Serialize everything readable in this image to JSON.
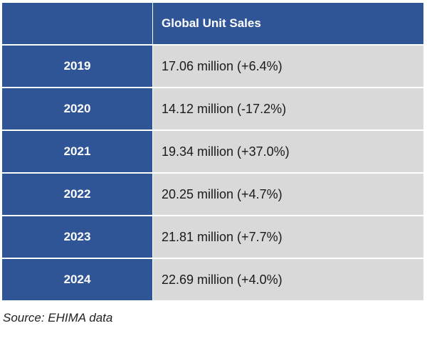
{
  "table": {
    "header": {
      "corner": "",
      "column_label": "Global Unit Sales"
    },
    "rows": [
      {
        "year": "2019",
        "value": "17.06 million (+6.4%)"
      },
      {
        "year": "2020",
        "value": "14.12 million (-17.2%)"
      },
      {
        "year": "2021",
        "value": "19.34 million (+37.0%)"
      },
      {
        "year": "2022",
        "value": "20.25 million (+4.7%)"
      },
      {
        "year": "2023",
        "value": "21.81 million (+7.7%)"
      },
      {
        "year": "2024",
        "value": "22.69 million (+4.0%)"
      }
    ]
  },
  "source": "Source: EHIMA data",
  "colors": {
    "header_blue": "#2f5597",
    "cell_gray": "#d9d9d9"
  },
  "chart_data": {
    "type": "table",
    "columns": [
      "",
      "Global Unit Sales"
    ],
    "categories": [
      "2019",
      "2020",
      "2021",
      "2022",
      "2023",
      "2024"
    ],
    "series": [
      {
        "name": "Global Unit Sales",
        "values": [
          17.06,
          14.12,
          19.34,
          20.25,
          21.81,
          22.69
        ],
        "change_pct": [
          6.4,
          -17.2,
          37.0,
          4.7,
          7.7,
          4.0
        ]
      }
    ]
  }
}
